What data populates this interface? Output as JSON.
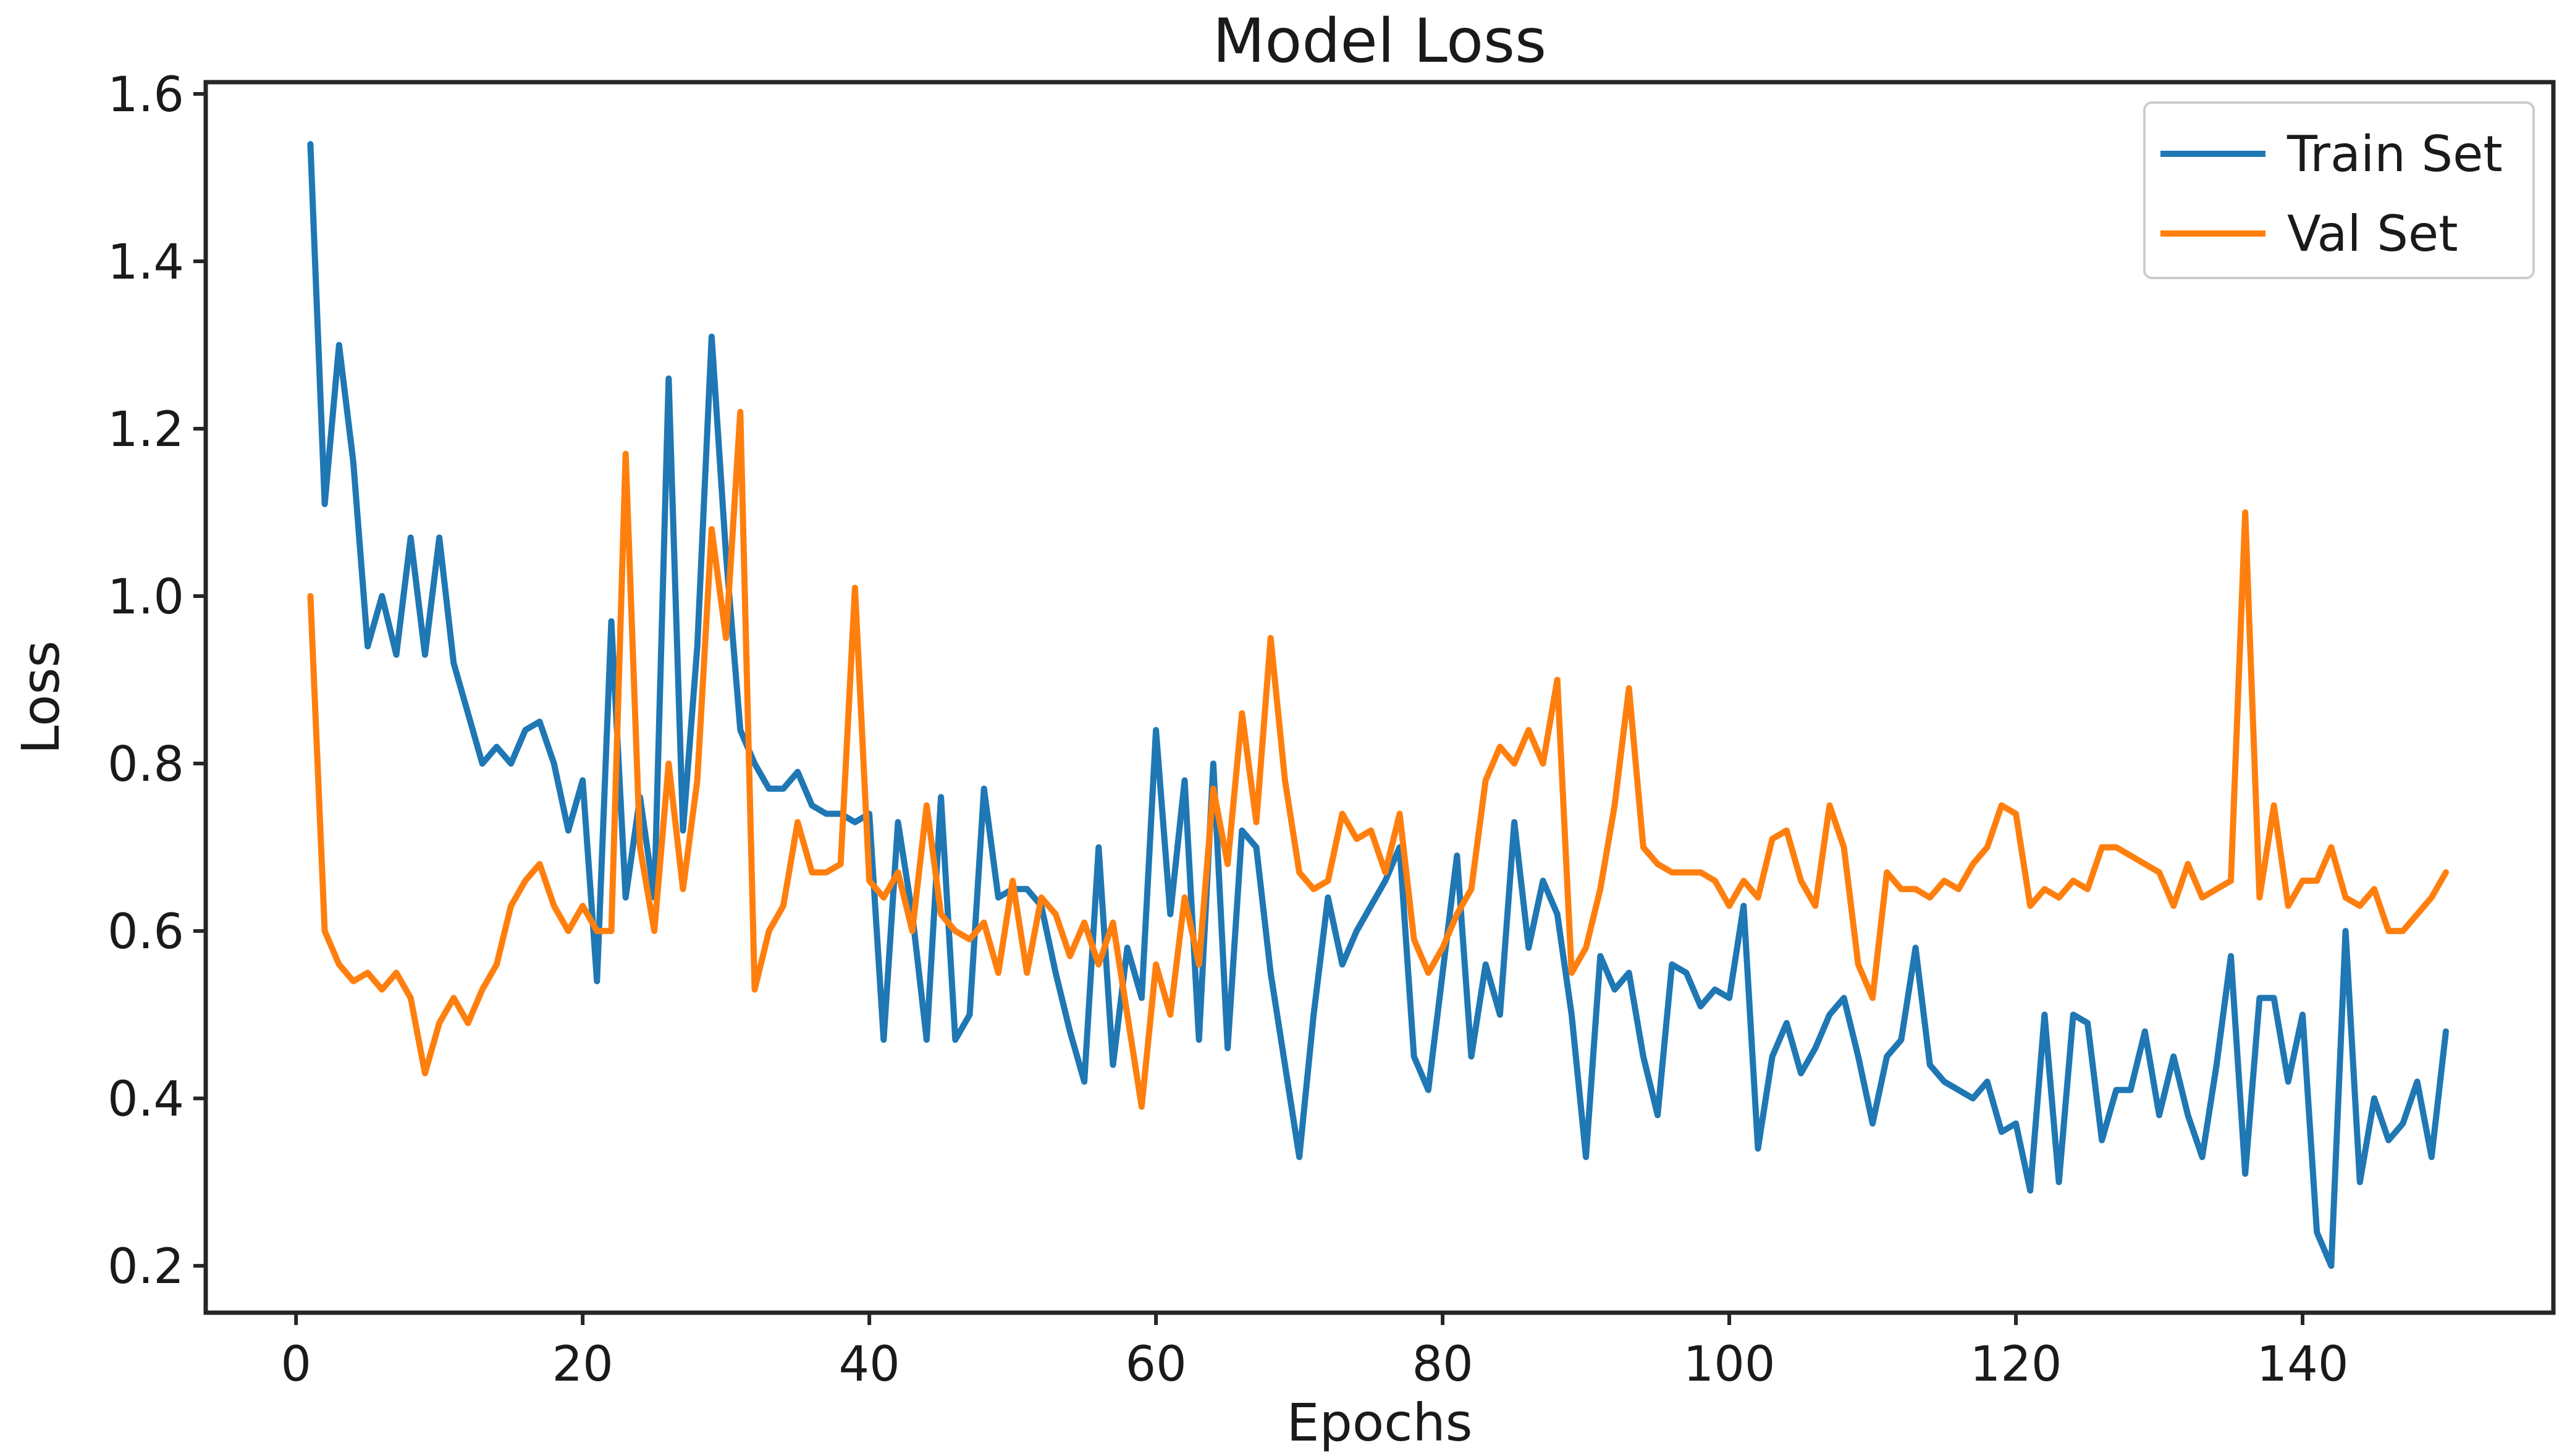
{
  "figure": {
    "title": "Model Loss",
    "x_label": "Epochs",
    "y_label": "Loss"
  },
  "legend": {
    "position": "upper right",
    "entries": [
      {
        "label": "Train Set",
        "color": "#1f77b4"
      },
      {
        "label": "Val Set",
        "color": "#ff7f0e"
      }
    ]
  },
  "style": {
    "background": "#ffffff",
    "axis_color": "#262626",
    "text_color": "#1a1a1a",
    "train_color": "#1f77b4",
    "val_color": "#ff7f0e"
  },
  "chart_data": {
    "type": "line",
    "title": "Model Loss",
    "xlabel": "Epochs",
    "ylabel": "Loss",
    "grid": false,
    "legend_position": "upper right",
    "xlim": [
      -6.3,
      157.5
    ],
    "ylim": [
      0.144,
      1.614
    ],
    "x_ticks": [
      0,
      20,
      40,
      60,
      80,
      100,
      120,
      140
    ],
    "y_ticks": [
      0.2,
      0.4,
      0.6,
      0.8,
      1.0,
      1.2,
      1.4,
      1.6
    ],
    "first_epoch": 1,
    "series": [
      {
        "name": "Train Set",
        "color": "#1f77b4",
        "values": [
          1.54,
          1.11,
          1.3,
          1.16,
          0.94,
          1.0,
          0.93,
          1.07,
          0.93,
          1.07,
          0.92,
          0.86,
          0.8,
          0.82,
          0.8,
          0.84,
          0.85,
          0.8,
          0.72,
          0.78,
          0.54,
          0.97,
          0.64,
          0.76,
          0.64,
          1.26,
          0.72,
          0.94,
          1.31,
          1.05,
          0.84,
          0.8,
          0.77,
          0.77,
          0.79,
          0.75,
          0.74,
          0.74,
          0.73,
          0.74,
          0.47,
          0.73,
          0.62,
          0.47,
          0.76,
          0.47,
          0.5,
          0.77,
          0.64,
          0.65,
          0.65,
          0.63,
          0.55,
          0.48,
          0.42,
          0.7,
          0.44,
          0.58,
          0.52,
          0.84,
          0.62,
          0.78,
          0.47,
          0.8,
          0.46,
          0.72,
          0.7,
          0.55,
          0.44,
          0.33,
          0.5,
          0.64,
          0.56,
          0.6,
          0.63,
          0.66,
          0.7,
          0.45,
          0.41,
          0.55,
          0.69,
          0.45,
          0.56,
          0.5,
          0.73,
          0.58,
          0.66,
          0.62,
          0.5,
          0.33,
          0.57,
          0.53,
          0.55,
          0.45,
          0.38,
          0.56,
          0.55,
          0.51,
          0.53,
          0.52,
          0.63,
          0.34,
          0.45,
          0.49,
          0.43,
          0.46,
          0.5,
          0.52,
          0.45,
          0.37,
          0.45,
          0.47,
          0.58,
          0.44,
          0.42,
          0.41,
          0.4,
          0.42,
          0.36,
          0.37,
          0.29,
          0.5,
          0.3,
          0.5,
          0.49,
          0.35,
          0.41,
          0.41,
          0.48,
          0.38,
          0.45,
          0.38,
          0.33,
          0.44,
          0.57,
          0.31,
          0.52,
          0.52,
          0.42,
          0.5,
          0.24,
          0.2,
          0.6,
          0.3,
          0.4,
          0.35,
          0.37,
          0.42,
          0.33,
          0.48
        ]
      },
      {
        "name": "Val Set",
        "color": "#ff7f0e",
        "values": [
          1.0,
          0.6,
          0.56,
          0.54,
          0.55,
          0.53,
          0.55,
          0.52,
          0.43,
          0.49,
          0.52,
          0.49,
          0.53,
          0.56,
          0.63,
          0.66,
          0.68,
          0.63,
          0.6,
          0.63,
          0.6,
          0.6,
          1.17,
          0.7,
          0.6,
          0.8,
          0.65,
          0.78,
          1.08,
          0.95,
          1.22,
          0.53,
          0.6,
          0.63,
          0.73,
          0.67,
          0.67,
          0.68,
          1.01,
          0.66,
          0.64,
          0.67,
          0.6,
          0.75,
          0.62,
          0.6,
          0.59,
          0.61,
          0.55,
          0.66,
          0.55,
          0.64,
          0.62,
          0.57,
          0.61,
          0.56,
          0.61,
          0.5,
          0.39,
          0.56,
          0.5,
          0.64,
          0.56,
          0.77,
          0.68,
          0.86,
          0.73,
          0.95,
          0.78,
          0.67,
          0.65,
          0.66,
          0.74,
          0.71,
          0.72,
          0.67,
          0.74,
          0.59,
          0.55,
          0.58,
          0.62,
          0.65,
          0.78,
          0.82,
          0.8,
          0.84,
          0.8,
          0.9,
          0.55,
          0.58,
          0.65,
          0.75,
          0.89,
          0.7,
          0.68,
          0.67,
          0.67,
          0.67,
          0.66,
          0.63,
          0.66,
          0.64,
          0.71,
          0.72,
          0.66,
          0.63,
          0.75,
          0.7,
          0.56,
          0.52,
          0.67,
          0.65,
          0.65,
          0.64,
          0.66,
          0.65,
          0.68,
          0.7,
          0.75,
          0.74,
          0.63,
          0.65,
          0.64,
          0.66,
          0.65,
          0.7,
          0.7,
          0.69,
          0.68,
          0.67,
          0.63,
          0.68,
          0.64,
          0.65,
          0.66,
          1.1,
          0.64,
          0.75,
          0.63,
          0.66,
          0.66,
          0.7,
          0.64,
          0.63,
          0.65,
          0.6,
          0.6,
          0.62,
          0.64,
          0.67
        ]
      }
    ]
  }
}
